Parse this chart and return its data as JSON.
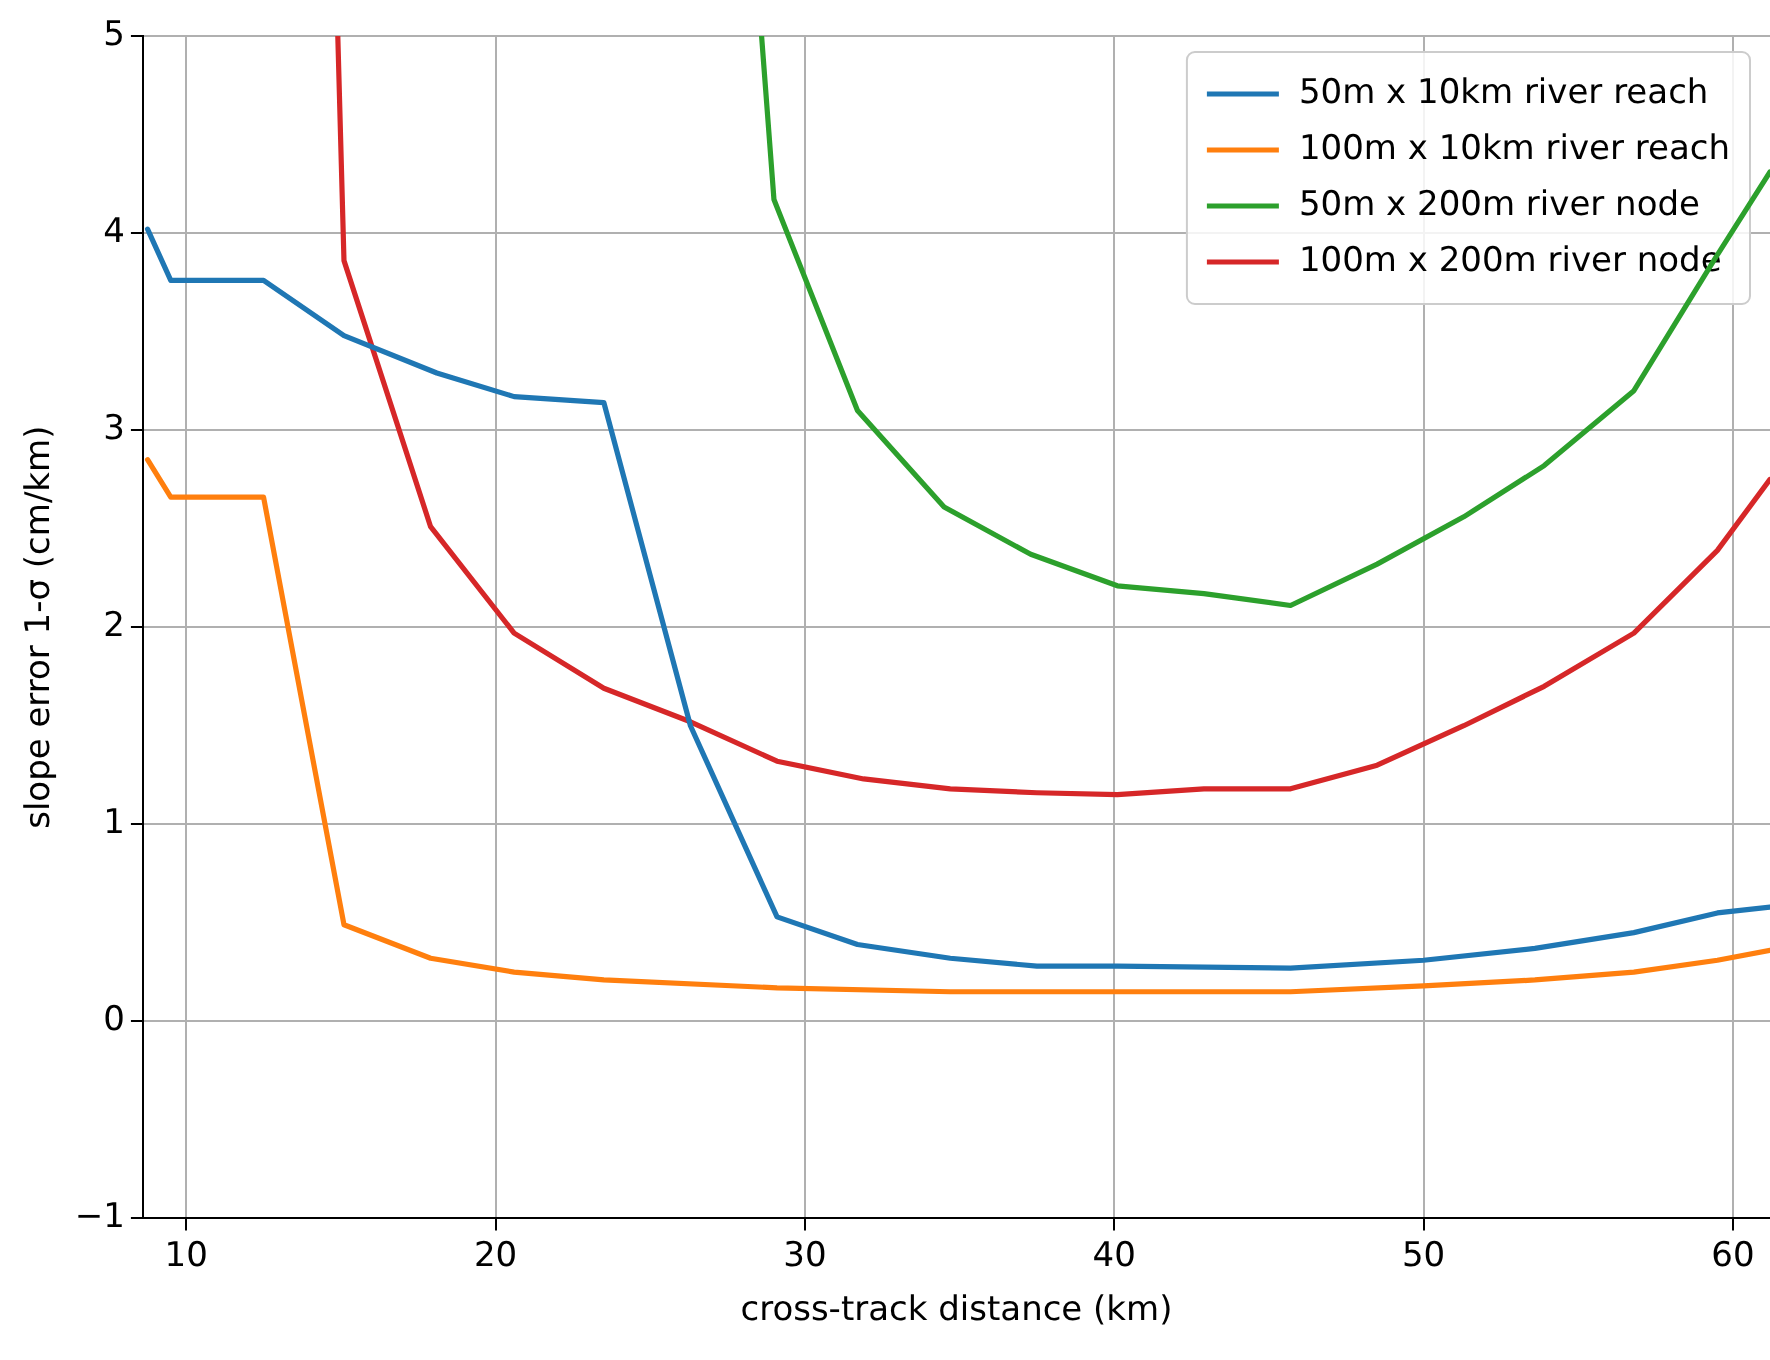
{
  "chart_data": {
    "type": "line",
    "xlabel": "cross-track distance (km)",
    "ylabel": "slope error 1-σ (cm/km)",
    "xlim": [
      8.6,
      61.2
    ],
    "xticks": [
      10,
      20,
      30,
      40,
      50,
      60
    ],
    "ylim": [
      -1,
      5
    ],
    "yticks": [
      -1,
      0,
      1,
      2,
      3,
      4,
      5
    ],
    "grid": true,
    "legend": "top right",
    "marker": "none",
    "line_style": "solid",
    "series": [
      {
        "name": "50m x 10km river reach",
        "color": "#1f77b4",
        "x": [
          8.75,
          9.5,
          12.5,
          15.1,
          18.1,
          20.6,
          23.5,
          26.3,
          29.1,
          31.7,
          34.7,
          37.5,
          40.1,
          45.7,
          50,
          53.6,
          56.8,
          59.5,
          61.2
        ],
        "values": [
          4.02,
          3.76,
          3.76,
          3.48,
          3.29,
          3.17,
          3.14,
          1.5,
          0.53,
          0.39,
          0.32,
          0.28,
          0.28,
          0.27,
          0.31,
          0.37,
          0.45,
          0.55,
          0.58
        ]
      },
      {
        "name": "100m x 10km river reach",
        "color": "#ff7f0e",
        "x": [
          8.75,
          9.5,
          12.5,
          15.1,
          17.9,
          20.6,
          23.5,
          29.1,
          34.7,
          40.1,
          45.7,
          50,
          53.6,
          56.8,
          59.5,
          61.2
        ],
        "values": [
          2.85,
          2.66,
          2.66,
          0.49,
          0.32,
          0.25,
          0.21,
          0.17,
          0.15,
          0.15,
          0.15,
          0.18,
          0.21,
          0.25,
          0.31,
          0.36
        ]
      },
      {
        "name": "50m x 200m river node",
        "color": "#2ca02c",
        "x": [
          28.6,
          29.0,
          31.7,
          34.5,
          37.3,
          40.1,
          42.9,
          45.7,
          48.5,
          51.3,
          53.9,
          56.8,
          59.5,
          61.2
        ],
        "values": [
          5,
          4.17,
          3.1,
          2.61,
          2.37,
          2.21,
          2.17,
          2.11,
          2.32,
          2.56,
          2.82,
          3.2,
          3.89,
          4.31
        ]
      },
      {
        "name": "100m x 200m river node",
        "color": "#d62728",
        "x": [
          14.9,
          15.1,
          17.9,
          20.6,
          23.5,
          26.3,
          29.1,
          31.9,
          34.7,
          37.5,
          40.1,
          42.9,
          45.7,
          48.5,
          51.3,
          53.9,
          56.8,
          59.5,
          61.2
        ],
        "values": [
          5,
          3.86,
          2.51,
          1.97,
          1.69,
          1.52,
          1.32,
          1.23,
          1.18,
          1.16,
          1.15,
          1.18,
          1.18,
          1.3,
          1.5,
          1.7,
          1.97,
          2.39,
          2.75
        ]
      }
    ]
  }
}
